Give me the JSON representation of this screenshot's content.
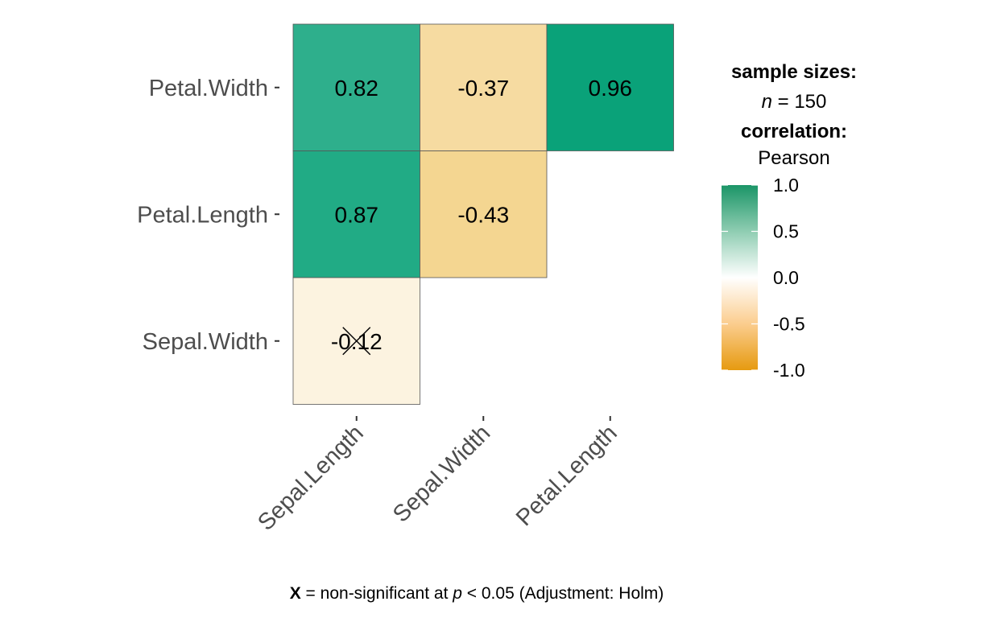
{
  "chart_data": {
    "type": "heatmap",
    "title": "",
    "x_categories": [
      "Sepal.Length",
      "Sepal.Width",
      "Petal.Length"
    ],
    "y_categories": [
      "Petal.Width",
      "Petal.Length",
      "Sepal.Width"
    ],
    "cells": [
      {
        "x": "Sepal.Length",
        "y": "Petal.Width",
        "value": 0.82,
        "label": "0.82",
        "significant": true
      },
      {
        "x": "Sepal.Width",
        "y": "Petal.Width",
        "value": -0.37,
        "label": "-0.37",
        "significant": true
      },
      {
        "x": "Petal.Length",
        "y": "Petal.Width",
        "value": 0.96,
        "label": "0.96",
        "significant": true
      },
      {
        "x": "Sepal.Length",
        "y": "Petal.Length",
        "value": 0.87,
        "label": "0.87",
        "significant": true
      },
      {
        "x": "Sepal.Width",
        "y": "Petal.Length",
        "value": -0.43,
        "label": "-0.43",
        "significant": true
      },
      {
        "x": "Sepal.Length",
        "y": "Sepal.Width",
        "value": -0.12,
        "label": "-0.12",
        "significant": false
      }
    ],
    "legend": {
      "sample_title": "sample sizes:",
      "n_symbol": "n",
      "n_text": " = 150",
      "correlation_title": "correlation:",
      "method": "Pearson",
      "ticks": [
        {
          "value": 1.0,
          "label": "1.0"
        },
        {
          "value": 0.5,
          "label": "0.5"
        },
        {
          "value": 0.0,
          "label": "0.0"
        },
        {
          "value": -0.5,
          "label": "-0.5"
        },
        {
          "value": -1.0,
          "label": "-1.0"
        }
      ],
      "range": [
        -1,
        1
      ],
      "placement": "right"
    },
    "colors": {
      "low": "#E69F00",
      "mid": "#FFFFFF",
      "high": "#009E73"
    },
    "caption": {
      "symbol": "X",
      "text1": " = non-significant at ",
      "p_symbol": "p",
      "text2": " < 0.05 (Adjustment: Holm)"
    }
  }
}
